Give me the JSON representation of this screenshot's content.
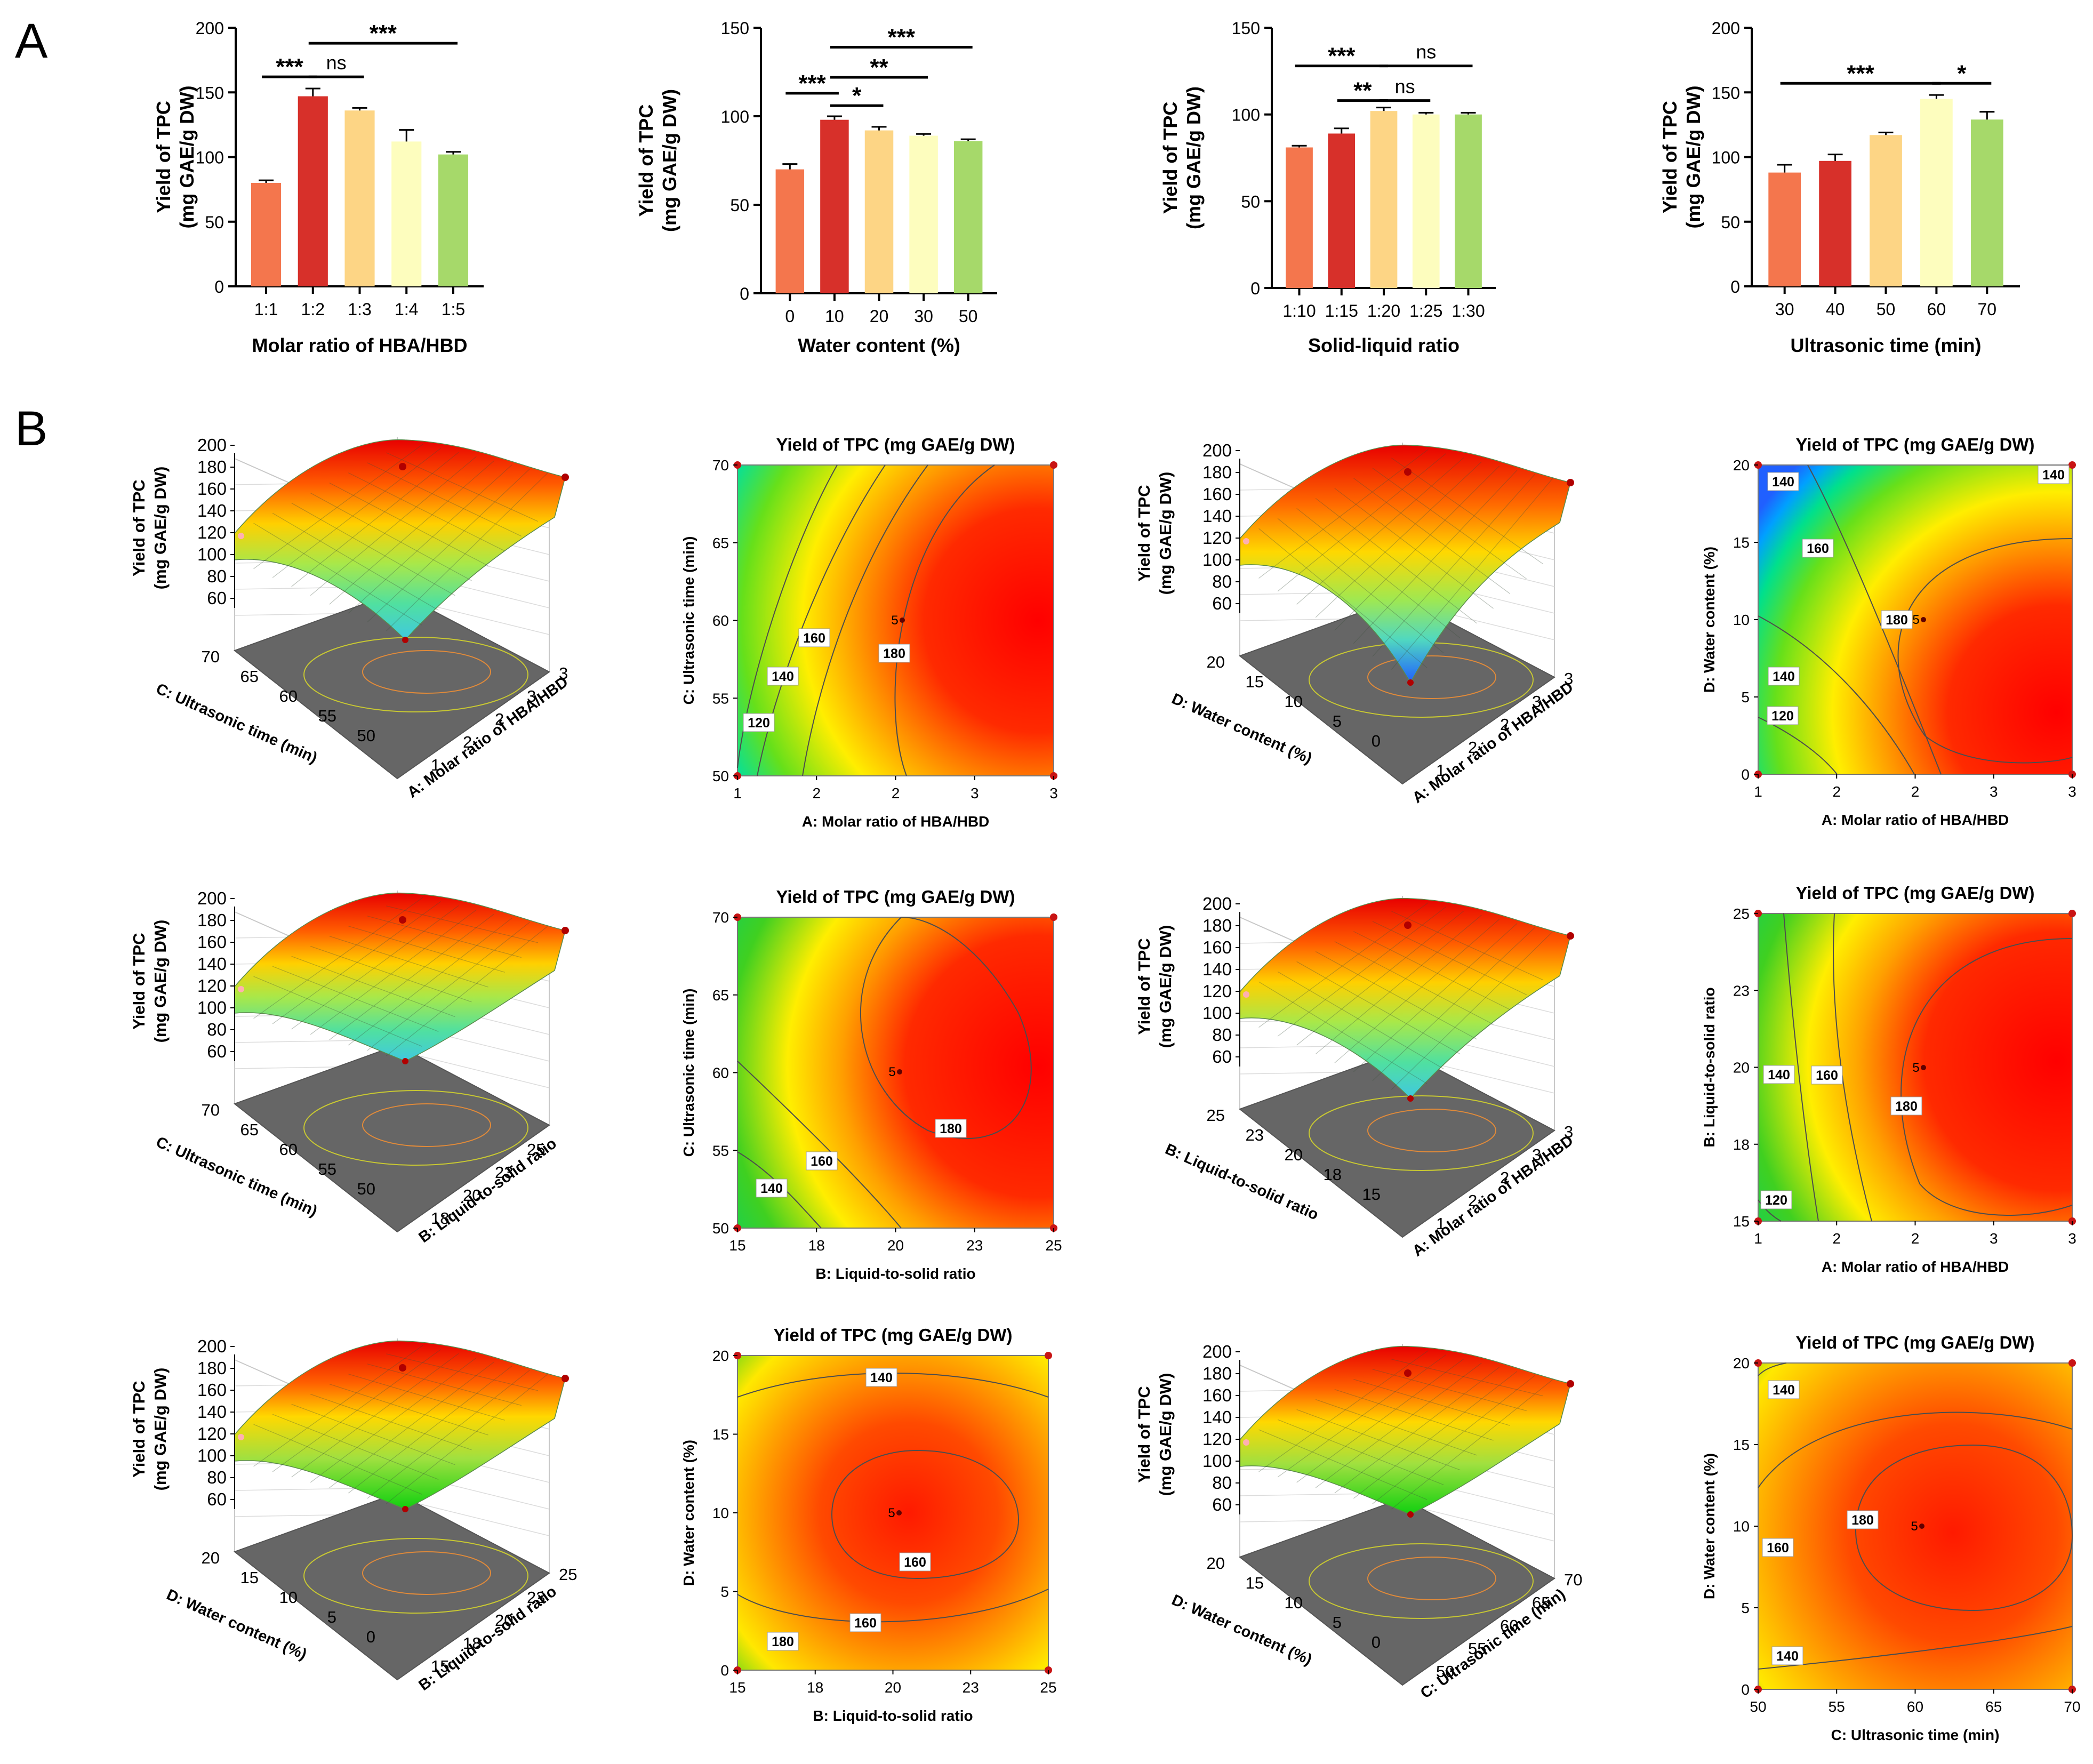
{
  "panel_labels": [
    "A",
    "B"
  ],
  "chart_data": [
    {
      "type": "bar",
      "ylabel_lines": [
        "Yield of TPC",
        "(mg GAE/g DW)"
      ],
      "xlabel": "Molar ratio of HBA/HBD",
      "categories": [
        "1:1",
        "1:2",
        "1:3",
        "1:4",
        "1:5"
      ],
      "values": [
        80,
        147,
        136,
        112,
        102
      ],
      "errors": [
        2,
        6,
        2,
        9,
        2
      ],
      "yticks": [
        0,
        50,
        100,
        150,
        200
      ],
      "ylim": [
        0,
        200
      ],
      "bar_colors": [
        "#f4764d",
        "#d7302a",
        "#fdd585",
        "#fdfdbe",
        "#a6d96a"
      ],
      "significance": [
        {
          "from": 0,
          "to": 1,
          "label": "***",
          "y": 162
        },
        {
          "from": 1,
          "to": 2,
          "label": "ns",
          "y": 162
        },
        {
          "from": 1,
          "to": 4,
          "label": "***",
          "y": 188
        }
      ]
    },
    {
      "type": "bar",
      "ylabel_lines": [
        "Yield of TPC",
        "(mg GAE/g DW)"
      ],
      "xlabel": "Water content (%)",
      "categories": [
        "0",
        "10",
        "20",
        "30",
        "50"
      ],
      "values": [
        70,
        98,
        92,
        89,
        86
      ],
      "errors": [
        3,
        2,
        2,
        1,
        1
      ],
      "yticks": [
        0,
        50,
        100,
        150
      ],
      "ylim": [
        0,
        150
      ],
      "bar_colors": [
        "#f4764d",
        "#d7302a",
        "#fdd585",
        "#fdfdbe",
        "#a6d96a"
      ],
      "significance": [
        {
          "from": 0,
          "to": 1,
          "label": "***",
          "y": 113
        },
        {
          "from": 1,
          "to": 2,
          "label": "*",
          "y": 106
        },
        {
          "from": 1,
          "to": 3,
          "label": "**",
          "y": 122
        },
        {
          "from": 1,
          "to": 4,
          "label": "***",
          "y": 139
        }
      ]
    },
    {
      "type": "bar",
      "ylabel_lines": [
        "Yield of TPC",
        "(mg GAE/g DW)"
      ],
      "xlabel": "Solid-liquid ratio",
      "categories": [
        "1:10",
        "1:15",
        "1:20",
        "1:25",
        "1:30"
      ],
      "values": [
        81,
        89,
        102,
        100,
        100
      ],
      "errors": [
        1,
        3,
        2,
        1,
        1
      ],
      "yticks": [
        0,
        50,
        100,
        150
      ],
      "ylim": [
        0,
        150
      ],
      "bar_colors": [
        "#f4764d",
        "#d7302a",
        "#fdd585",
        "#fdfdbe",
        "#a6d96a"
      ],
      "significance": [
        {
          "from": 0,
          "to": 2,
          "label": "***",
          "y": 128
        },
        {
          "from": 1,
          "to": 2,
          "label": "**",
          "y": 108
        },
        {
          "from": 2,
          "to": 3,
          "label": "ns",
          "y": 108
        },
        {
          "from": 2,
          "to": 4,
          "label": "ns",
          "y": 128
        }
      ]
    },
    {
      "type": "bar",
      "ylabel_lines": [
        "Yield of TPC",
        "(mg GAE/g DW)"
      ],
      "xlabel": "Ultrasonic time (min)",
      "categories": [
        "30",
        "40",
        "50",
        "60",
        "70"
      ],
      "values": [
        88,
        97,
        117,
        145,
        129
      ],
      "errors": [
        6,
        5,
        2,
        3,
        6
      ],
      "yticks": [
        0,
        50,
        100,
        150,
        200
      ],
      "ylim": [
        0,
        200
      ],
      "bar_colors": [
        "#f4764d",
        "#d7302a",
        "#fdd585",
        "#fdfdbe",
        "#a6d96a"
      ],
      "significance": [
        {
          "from": 0,
          "to": 3,
          "label": "***",
          "y": 157
        },
        {
          "from": 3,
          "to": 4,
          "label": "*",
          "y": 157
        }
      ]
    }
  ],
  "surfaces": [
    {
      "z_label_lines": [
        "Yield of TPC",
        "(mg GAE/g DW)"
      ],
      "z_ticks": [
        "200",
        "180",
        "160",
        "140",
        "120",
        "100",
        "80",
        "60"
      ],
      "left_axis_label": "C: Ultrasonic time (min)",
      "left_ticks": [
        "70",
        "65",
        "60",
        "55",
        "50"
      ],
      "right_axis_label": "A: Molar ratio of HBA/HBD",
      "right_ticks": [
        "1",
        "2",
        "2",
        "3",
        "3"
      ]
    },
    {
      "z_label_lines": [
        "Yield of TPC",
        "(mg GAE/g DW)"
      ],
      "z_ticks": [
        "200",
        "180",
        "160",
        "140",
        "120",
        "100",
        "80",
        "60"
      ],
      "left_axis_label": "D: Water content (%)",
      "left_ticks": [
        "20",
        "15",
        "10",
        "5",
        "0"
      ],
      "right_axis_label": "A: Molar ratio of HBA/HBD",
      "right_ticks": [
        "1",
        "2",
        "2",
        "3",
        "3"
      ]
    },
    {
      "z_label_lines": [
        "Yield of TPC",
        "(mg GAE/g DW)"
      ],
      "z_ticks": [
        "200",
        "180",
        "160",
        "140",
        "120",
        "100",
        "80",
        "60"
      ],
      "left_axis_label": "C: Ultrasonic time (min)",
      "left_ticks": [
        "70",
        "65",
        "60",
        "55",
        "50"
      ],
      "right_axis_label": "B: Liquid-to-solid ratio",
      "right_ticks": [
        "18",
        "20",
        "23",
        "25"
      ]
    },
    {
      "z_label_lines": [
        "Yield of TPC",
        "(mg GAE/g DW)"
      ],
      "z_ticks": [
        "200",
        "180",
        "160",
        "140",
        "120",
        "100",
        "80",
        "60"
      ],
      "left_axis_label": "B: Liquid-to-solid ratio",
      "left_ticks": [
        "25",
        "23",
        "20",
        "18",
        "15"
      ],
      "right_axis_label": "A: Molar ratio of HBA/HBD",
      "right_ticks": [
        "1",
        "2",
        "2",
        "3",
        "3"
      ]
    },
    {
      "z_label_lines": [
        "Yield of TPC",
        "(mg GAE/g DW)"
      ],
      "z_ticks": [
        "200",
        "180",
        "160",
        "140",
        "120",
        "100",
        "80",
        "60"
      ],
      "left_axis_label": "D: Water content (%)",
      "left_ticks": [
        "20",
        "15",
        "10",
        "5",
        "0"
      ],
      "right_axis_label": "B: Liquid-to-solid ratio",
      "right_ticks": [
        "15",
        "18",
        "20",
        "23",
        "25"
      ]
    },
    {
      "z_label_lines": [
        "Yield of TPC",
        "(mg GAE/g DW)"
      ],
      "z_ticks": [
        "200",
        "180",
        "160",
        "140",
        "120",
        "100",
        "80",
        "60"
      ],
      "left_axis_label": "D: Water content (%)",
      "left_ticks": [
        "20",
        "15",
        "10",
        "5",
        "0"
      ],
      "right_axis_label": "C: Ultrasonic time (min)",
      "right_ticks": [
        "50",
        "55",
        "60",
        "65",
        "70"
      ]
    }
  ],
  "contours": [
    {
      "title": "Yield of TPC (mg GAE/g DW)",
      "xlabel": "A: Molar ratio of HBA/HBD",
      "ylabel": "C: Ultrasonic time (min)",
      "xticks": [
        "1",
        "2",
        "2",
        "3",
        "3"
      ],
      "yticks": [
        "50",
        "55",
        "60",
        "65",
        "70"
      ],
      "center_label": "5",
      "contour_labels": [
        "120",
        "140",
        "160",
        "180"
      ]
    },
    {
      "title": "Yield of TPC (mg GAE/g DW)",
      "xlabel": "A: Molar ratio of HBA/HBD",
      "ylabel": "D: Water content (%)",
      "xticks": [
        "1",
        "2",
        "2",
        "3",
        "3"
      ],
      "yticks": [
        "0",
        "5",
        "10",
        "15",
        "20"
      ],
      "center_label": "5",
      "contour_labels": [
        "120",
        "140",
        "160",
        "180",
        "140",
        "140"
      ]
    },
    {
      "title": "Yield of TPC (mg GAE/g DW)",
      "xlabel": "B: Liquid-to-solid ratio",
      "ylabel": "C: Ultrasonic time (min)",
      "xticks": [
        "15",
        "18",
        "20",
        "23",
        "25"
      ],
      "yticks": [
        "50",
        "55",
        "60",
        "65",
        "70"
      ],
      "center_label": "5",
      "contour_labels": [
        "140",
        "160",
        "180"
      ]
    },
    {
      "title": "Yield of TPC (mg GAE/g DW)",
      "xlabel": "A: Molar ratio of HBA/HBD",
      "ylabel": "B: Liquid-to-solid ratio",
      "xticks": [
        "1",
        "2",
        "2",
        "3",
        "3"
      ],
      "yticks": [
        "15",
        "18",
        "20",
        "23",
        "25"
      ],
      "center_label": "5",
      "contour_labels": [
        "120",
        "140",
        "160",
        "180"
      ]
    },
    {
      "title": "Yield of TPC (mg GAE/g DW)",
      "xlabel": "B: Liquid-to-solid ratio",
      "ylabel": "D: Water content (%)",
      "xticks": [
        "15",
        "18",
        "20",
        "23",
        "25"
      ],
      "yticks": [
        "0",
        "5",
        "10",
        "15",
        "20"
      ],
      "center_label": "5",
      "contour_labels": [
        "140",
        "160",
        "160",
        "180"
      ]
    },
    {
      "title": "Yield of TPC (mg GAE/g DW)",
      "xlabel": "C: Ultrasonic time (min)",
      "ylabel": "D: Water content (%)",
      "xticks": [
        "50",
        "55",
        "60",
        "65",
        "70"
      ],
      "yticks": [
        "0",
        "5",
        "10",
        "15",
        "20"
      ],
      "center_label": "5",
      "contour_labels": [
        "140",
        "160",
        "180",
        "140"
      ]
    }
  ]
}
